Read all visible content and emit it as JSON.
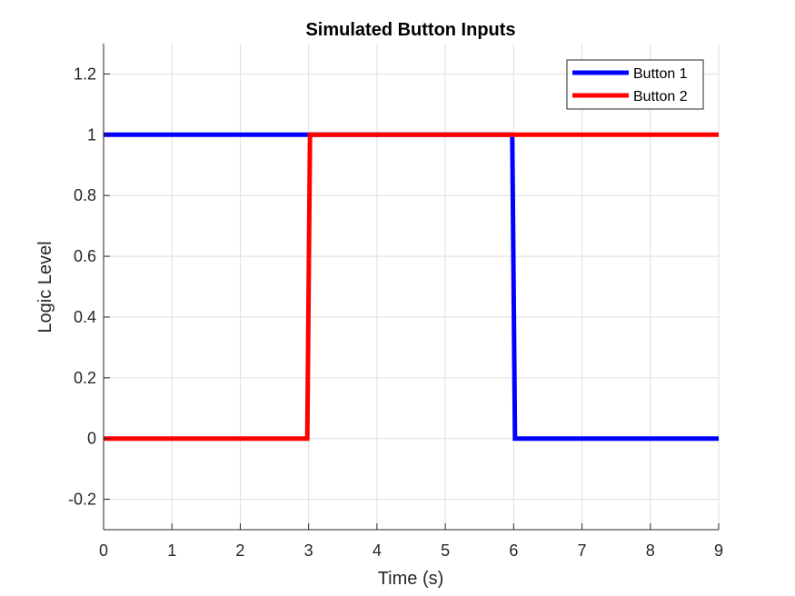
{
  "chart_data": {
    "type": "line",
    "title": "Simulated Button Inputs",
    "xlabel": "Time (s)",
    "ylabel": "Logic Level",
    "xlim": [
      0,
      9
    ],
    "ylim": [
      -0.3,
      1.3
    ],
    "xticks": [
      0,
      1,
      2,
      3,
      4,
      5,
      6,
      7,
      8,
      9
    ],
    "yticks": [
      -0.2,
      0,
      0.2,
      0.4,
      0.6,
      0.8,
      1,
      1.2
    ],
    "ytick_labels": [
      "-0.2",
      "0",
      "0.2",
      "0.4",
      "0.6",
      "0.8",
      "1",
      "1.2"
    ],
    "grid": true,
    "legend_position": "top-right",
    "series": [
      {
        "name": "Button 1",
        "color": "#0000ff",
        "x": [
          0,
          5.98,
          6.02,
          9
        ],
        "y": [
          1,
          1,
          0,
          0
        ]
      },
      {
        "name": "Button 2",
        "color": "#ff0000",
        "x": [
          0,
          2.98,
          3.02,
          9
        ],
        "y": [
          0,
          0,
          1,
          1
        ]
      }
    ]
  }
}
